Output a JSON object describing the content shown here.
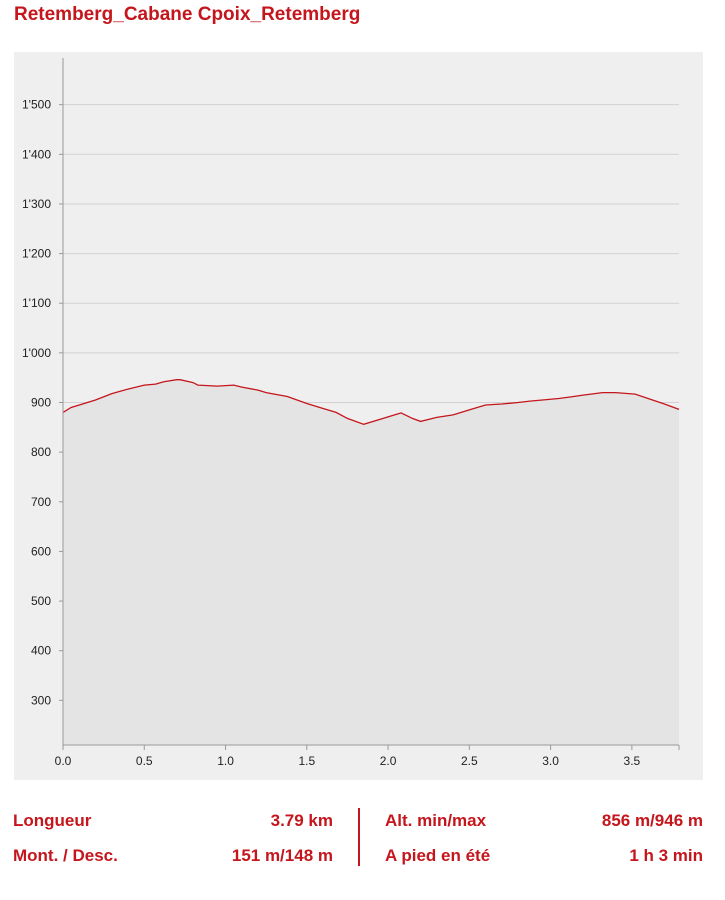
{
  "header": {
    "title": "Retemberg_Cabane Cpoix_Retemberg"
  },
  "colors": {
    "accent": "#c4161c",
    "area_fill": "#e4e4e4",
    "background": "#efefef"
  },
  "chart_data": {
    "type": "area",
    "title": "",
    "xlabel": "",
    "ylabel": "",
    "xlim": [
      0,
      3.79
    ],
    "ylim": [
      210,
      1590
    ],
    "x_ticks": [
      0,
      0.5,
      1.0,
      1.5,
      2.0,
      2.5,
      3.0,
      3.5
    ],
    "x_tick_labels": [
      "0.0",
      "0.5",
      "1.0",
      "1.5",
      "2.0",
      "2.5",
      "3.0",
      "3.5"
    ],
    "y_ticks": [
      300,
      400,
      500,
      600,
      700,
      800,
      900,
      1000,
      1100,
      1200,
      1300,
      1400,
      1500
    ],
    "y_tick_labels": [
      "300",
      "400",
      "500",
      "600",
      "700",
      "800",
      "900",
      "1'000",
      "1'100",
      "1'200",
      "1'300",
      "1'400",
      "1'500"
    ],
    "grid": true,
    "series": [
      {
        "x": [
          0,
          0.05,
          0.1,
          0.2,
          0.3,
          0.4,
          0.5,
          0.57,
          0.62,
          0.7,
          0.72,
          0.8,
          0.83,
          0.95,
          1.05,
          1.1,
          1.2,
          1.25,
          1.38,
          1.5,
          1.6,
          1.68,
          1.75,
          1.85,
          1.95,
          2.05,
          2.08,
          2.15,
          2.2,
          2.3,
          2.4,
          2.5,
          2.6,
          2.7,
          2.8,
          2.88,
          2.95,
          3.05,
          3.12,
          3.2,
          3.32,
          3.4,
          3.52,
          3.6,
          3.7,
          3.79
        ],
        "y": [
          880,
          890,
          895,
          905,
          918,
          927,
          935,
          937,
          942,
          946,
          946,
          940,
          935,
          933,
          935,
          931,
          925,
          920,
          912,
          898,
          888,
          880,
          868,
          856,
          866,
          876,
          879,
          868,
          862,
          870,
          875,
          885,
          895,
          897,
          900,
          903,
          905,
          908,
          911,
          915,
          920,
          920,
          917,
          908,
          897,
          886
        ]
      }
    ]
  },
  "stats": {
    "length_label": "Longueur",
    "length_value": "3.79 km",
    "updown_label": "Mont. / Desc.",
    "updown_value": "151 m/148 m",
    "alt_label": "Alt. min/max",
    "alt_value": "856 m/946 m",
    "time_label": "A pied en été",
    "time_value": "1 h 3 min"
  }
}
